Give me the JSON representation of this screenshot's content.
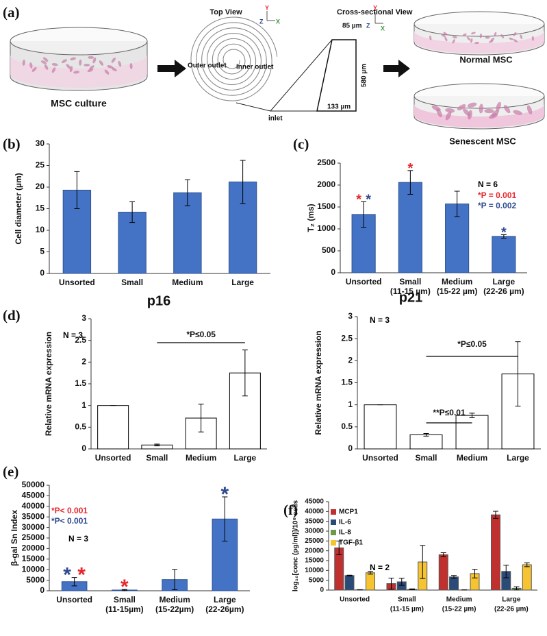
{
  "diagram": {
    "panel_label": "(a)",
    "source_label": "MSC culture",
    "top_view": "Top View",
    "cross_section": "Cross-sectional View",
    "outer_outlet": "Outer outlet",
    "inner_outlet": "Inner outlet",
    "inlet": "inlet",
    "top_width": "85 µm",
    "height": "580 µm",
    "bottom_width": "133 µm",
    "normal": "Normal MSC",
    "senescent": "Senescent MSC",
    "axes_top": [
      "Y",
      "Z",
      "X"
    ],
    "axes_cross": [
      "Y",
      "Z",
      "X"
    ]
  },
  "chart_data": [
    {
      "type": "bar",
      "panel_label": "(b)",
      "y_label": "Cell diameter (µm)",
      "categories": [
        "Unsorted",
        "Small",
        "Medium",
        "Large"
      ],
      "values": [
        19.3,
        14.2,
        18.7,
        21.2
      ],
      "errors": [
        4.3,
        2.4,
        3.0,
        5.0
      ],
      "color": "#4472c4",
      "edge_color": "#2f528f",
      "ylim": [
        0,
        30
      ],
      "yticks": [
        0,
        5,
        10,
        15,
        20,
        25,
        30
      ]
    },
    {
      "type": "bar",
      "panel_label": "(c)",
      "y_label": "T₂ (ms)",
      "categories": [
        "Unsorted",
        "Small",
        "Medium",
        "Large"
      ],
      "category_details": [
        null,
        "(11-15 µm)",
        "(15-22 µm)",
        "(22-26 µm)"
      ],
      "values": [
        1330,
        2060,
        1570,
        830
      ],
      "errors": [
        290,
        270,
        290,
        40
      ],
      "color": "#4472c4",
      "edge_color": "#2f528f",
      "ylim": [
        0,
        2500
      ],
      "yticks": [
        0,
        500,
        1000,
        1500,
        2000,
        2500
      ],
      "annotations": [
        {
          "text": "N = 6",
          "color": "#000000"
        },
        {
          "text": "*P = 0.001",
          "color": "#e8262b"
        },
        {
          "text": "*P = 0.002",
          "color": "#2e4a8f"
        }
      ],
      "significance_marks": [
        {
          "category": 0,
          "text": "*",
          "color": "#e8262b"
        },
        {
          "category": 0,
          "text": "*",
          "color": "#2e4a8f"
        },
        {
          "category": 1,
          "text": "*",
          "color": "#e8262b"
        },
        {
          "category": 3,
          "text": "*",
          "color": "#2e4a8f"
        }
      ]
    },
    {
      "type": "bar",
      "panel_label": "(d)",
      "title": "p16",
      "y_label": "Relative mRNA expression",
      "categories": [
        "Unsorted",
        "Small",
        "Medium",
        "Large"
      ],
      "values": [
        1,
        0.09,
        0.71,
        1.75
      ],
      "errors": [
        0,
        0.02,
        0.32,
        0.53
      ],
      "color": "#ffffff",
      "edge_color": "#000000",
      "ylim": [
        0,
        3
      ],
      "yticks": [
        0,
        0.5,
        1,
        1.5,
        2,
        2.5,
        3
      ],
      "annotations": [
        {
          "text": "N = 3",
          "color": "#000000"
        }
      ],
      "comparisons": [
        {
          "from": 1,
          "to": 3,
          "label": "*P≤0.05"
        }
      ]
    },
    {
      "type": "bar",
      "title": "p21",
      "y_label": "Relative mRNA expression",
      "categories": [
        "Unsorted",
        "Small",
        "Medium",
        "Large"
      ],
      "values": [
        1,
        0.32,
        0.76,
        1.7
      ],
      "errors": [
        0,
        0.03,
        0.05,
        0.73
      ],
      "color": "#ffffff",
      "edge_color": "#000000",
      "ylim": [
        0,
        3
      ],
      "yticks": [
        0,
        0.5,
        1,
        1.5,
        2,
        2.5,
        3
      ],
      "annotations": [
        {
          "text": "N = 3",
          "color": "#000000"
        }
      ],
      "comparisons": [
        {
          "from": 1,
          "to": 3,
          "label": "*P≤0.05"
        },
        {
          "from": 1,
          "to": 2,
          "label": "**P≤0.01"
        }
      ]
    },
    {
      "type": "bar",
      "panel_label": "(e)",
      "y_label": "β-gal Sn Index",
      "categories": [
        "Unsorted",
        "Small",
        "Medium",
        "Large"
      ],
      "category_details": [
        null,
        "(11-15µm)",
        "(15-22µm)",
        "(22-26µm)"
      ],
      "values": [
        4300,
        350,
        5300,
        34000
      ],
      "errors": [
        2000,
        300,
        4800,
        10500
      ],
      "color": "#4472c4",
      "edge_color": "#2f528f",
      "ylim": [
        0,
        50000
      ],
      "yticks": [
        0,
        5000,
        10000,
        15000,
        20000,
        25000,
        30000,
        35000,
        40000,
        45000,
        50000
      ],
      "annotations": [
        {
          "text": "*P< 0.001",
          "color": "#e8262b"
        },
        {
          "text": "*P< 0.001",
          "color": "#2e4a8f"
        },
        {
          "text": "N = 3",
          "color": "#000000"
        }
      ],
      "significance_marks": [
        {
          "category": 0,
          "text": "*",
          "color": "#2e4a8f"
        },
        {
          "category": 0,
          "text": "*",
          "color": "#e8262b"
        },
        {
          "category": 1,
          "text": "*",
          "color": "#e8262b"
        },
        {
          "category": 3,
          "text": "*",
          "color": "#2e4a8f"
        }
      ]
    },
    {
      "type": "bar",
      "panel_label": "(f)",
      "y_label": "log₁₀[conc (pg/ml)]/10⁶ cells",
      "categories": [
        "Unsorted",
        "Small",
        "Medium",
        "Large"
      ],
      "category_details": [
        null,
        "(11-15 µm)",
        "(15-22 µm)",
        "(22-26 µm)"
      ],
      "series": [
        {
          "name": "MCP1",
          "color": "#c0302e",
          "values": [
            21500,
            3300,
            18000,
            38300
          ],
          "errors": [
            3500,
            2800,
            1000,
            1800
          ]
        },
        {
          "name": "IL-6",
          "color": "#2a4a78",
          "values": [
            7400,
            4200,
            6700,
            9500
          ],
          "errors": [
            200,
            1800,
            700,
            3200
          ]
        },
        {
          "name": "IL-8",
          "color": "#6a9a4a",
          "values": [
            150,
            400,
            100,
            900
          ],
          "errors": [
            50,
            200,
            50,
            800
          ]
        },
        {
          "name": "TGF-β1",
          "color": "#f5c430",
          "values": [
            8800,
            14300,
            8400,
            12900
          ],
          "errors": [
            700,
            8400,
            2200,
            1000
          ]
        }
      ],
      "edge_color": "#555555",
      "ylim": [
        0,
        45000
      ],
      "yticks": [
        0,
        5000,
        10000,
        15000,
        20000,
        25000,
        30000,
        35000,
        40000,
        45000
      ],
      "annotations": [
        {
          "text": "N = 2",
          "color": "#000000"
        }
      ]
    }
  ]
}
